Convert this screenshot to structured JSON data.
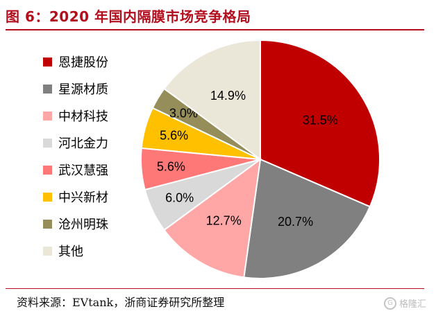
{
  "header": {
    "title": "图 6：2020 年国内隔膜市场竞争格局"
  },
  "chart_data": {
    "type": "pie",
    "title": "图 6：2020 年国内隔膜市场竞争格局",
    "start_angle_deg": 0,
    "direction": "clockwise",
    "legend_position": "left",
    "slices": [
      {
        "name": "恩捷股份",
        "value": 31.5,
        "label": "31.5%",
        "color": "#c00000"
      },
      {
        "name": "星源材质",
        "value": 20.7,
        "label": "20.7%",
        "color": "#808080"
      },
      {
        "name": "中材科技",
        "value": 12.7,
        "label": "12.7%",
        "color": "#ffa6a6"
      },
      {
        "name": "河北金力",
        "value": 6.0,
        "label": "6.0%",
        "color": "#d9d9d9"
      },
      {
        "name": "武汉慧强",
        "value": 5.6,
        "label": "5.6%",
        "color": "#ff7878"
      },
      {
        "name": "中兴新材",
        "value": 5.6,
        "label": "5.6%",
        "color": "#ffc000"
      },
      {
        "name": "沧州明珠",
        "value": 3.0,
        "label": "3.0%",
        "color": "#958e5a"
      },
      {
        "name": "其他",
        "value": 14.9,
        "label": "14.9%",
        "color": "#ebe7d8"
      }
    ]
  },
  "footer": {
    "source": "资料来源：EVtank，浙商证券研究所整理",
    "watermark": "格隆汇",
    "watermark_glyph": "G"
  }
}
